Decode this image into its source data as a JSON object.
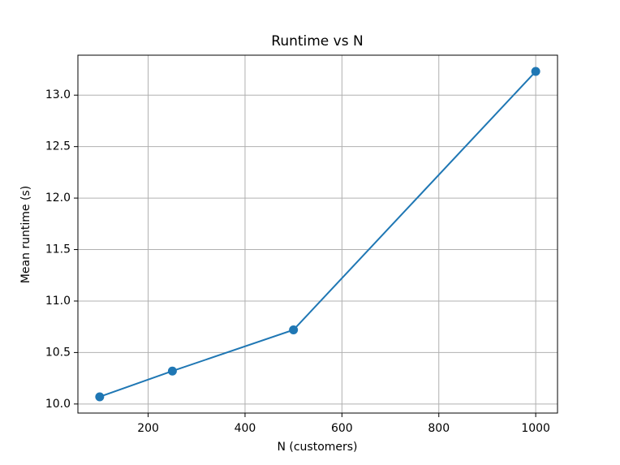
{
  "chart_data": {
    "type": "line",
    "title": "Runtime vs N",
    "x_label": "N (customers)",
    "y_label": "Mean runtime (s)",
    "x": [
      100,
      250,
      500,
      1000
    ],
    "series": [
      {
        "name": "Mean runtime",
        "color": "#1f77b4",
        "values": [
          10.07,
          10.32,
          10.72,
          13.23
        ]
      }
    ],
    "xlim": [
      55,
      1045
    ],
    "xticks": [
      200,
      400,
      600,
      800,
      1000
    ],
    "ylim": [
      9.912,
      13.388
    ],
    "yticks": [
      {
        "value": 10.0,
        "label": "10.0"
      },
      {
        "value": 10.5,
        "label": "10.5"
      },
      {
        "value": 11.0,
        "label": "11.0"
      },
      {
        "value": 11.5,
        "label": "11.5"
      },
      {
        "value": 12.0,
        "label": "12.0"
      },
      {
        "value": 12.5,
        "label": "12.5"
      },
      {
        "value": 13.0,
        "label": "13.0"
      }
    ],
    "grid": true
  }
}
